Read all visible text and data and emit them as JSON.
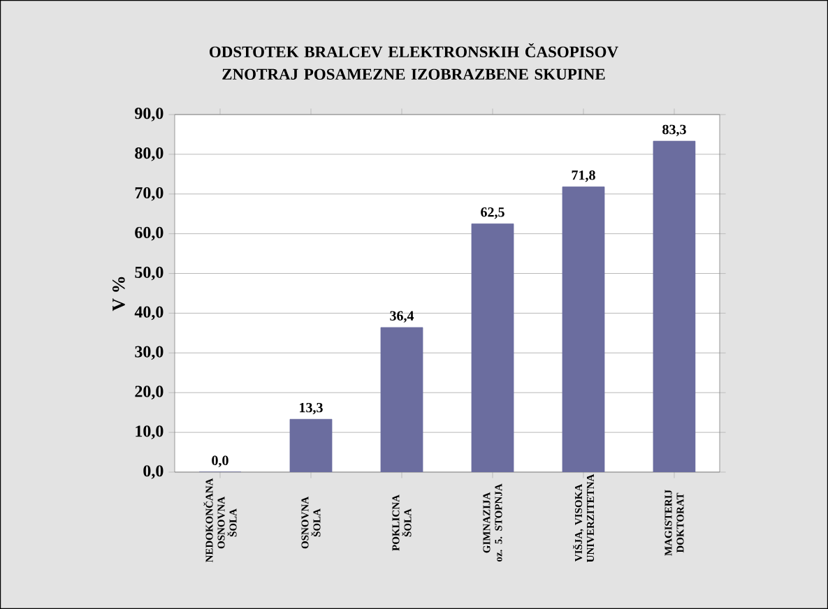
{
  "chart_data": {
    "type": "bar",
    "title": "ODSTOTEK BRALCEV ELEKTRONSKIH ČASOPISOV ZNOTRAJ POSAMEZNE IZOBRAZBENE SKUPINE",
    "ylabel": "V %",
    "categories": [
      "NEDOKONČANA OSNOVNA ŠOLA",
      "OSNOVNA ŠOLA",
      "POKLICNA ŠOLA",
      "GIMNAZIJA oz. 5. STOPNJA",
      "VIŠJA, VISOKA UNIVERZITETNA",
      "MAGISTERIJ DOKTORAT"
    ],
    "values": [
      0.0,
      13.3,
      36.4,
      62.5,
      71.8,
      83.3
    ],
    "value_labels": [
      "0,0",
      "13,3",
      "36,4",
      "62,5",
      "71,8",
      "83,3"
    ],
    "color": "#6b6d9f",
    "ylim": [
      0,
      90
    ],
    "yticks": [
      {
        "value": 0,
        "label": "0,0"
      },
      {
        "value": 10,
        "label": "10,0"
      },
      {
        "value": 20,
        "label": "20,0"
      },
      {
        "value": 30,
        "label": "30,0"
      },
      {
        "value": 40,
        "label": "40,0"
      },
      {
        "value": 50,
        "label": "50,0"
      },
      {
        "value": 60,
        "label": "60,0"
      },
      {
        "value": 70,
        "label": "70,0"
      },
      {
        "value": 80,
        "label": "80,0"
      },
      {
        "value": 90,
        "label": "90,0"
      }
    ],
    "grid": "y"
  }
}
